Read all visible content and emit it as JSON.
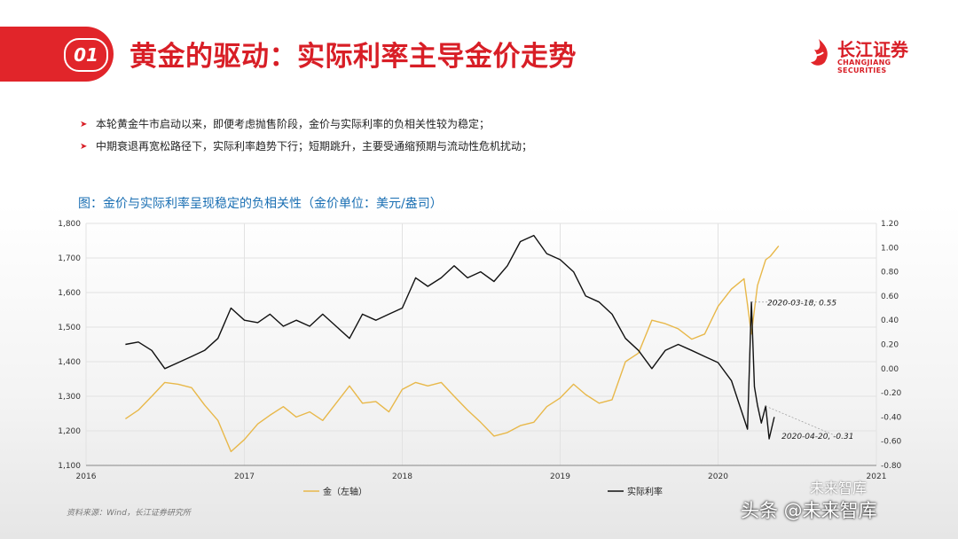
{
  "header": {
    "number": "01",
    "title": "黄金的驱动：实际利率主导金价走势"
  },
  "logo": {
    "cn": "长江证券",
    "en": "CHANGJIANG SECURITIES"
  },
  "bullets": [
    "本轮黄金牛市启动以来，即便考虑抛售阶段，金价与实际利率的负相关性较为稳定；",
    "中期衰退再宽松路径下，实际利率趋势下行；短期跳升，主要受通缩预期与流动性危机扰动；"
  ],
  "chart_title": "图：金价与实际利率呈现稳定的负相关性（金价单位：美元/盎司）",
  "source": "资料来源：Wind，长江证券研究所",
  "watermark": "头条 @未来智库",
  "watermark_top": "未来智库",
  "colors": {
    "gold": "#e8b84a",
    "real_rate": "#111111",
    "brand_red": "#e1252a"
  },
  "chart_data": {
    "type": "line",
    "x_ticks": [
      "2016",
      "2017",
      "2018",
      "2019",
      "2020",
      "2021"
    ],
    "xlim": [
      "2016-01-01",
      "2021-01-01"
    ],
    "y_left": {
      "ylim": [
        1100,
        1800
      ],
      "ticks": [
        "1,100",
        "1,200",
        "1,300",
        "1,400",
        "1,500",
        "1,600",
        "1,700",
        "1,800"
      ]
    },
    "y_right": {
      "ylim": [
        -0.8,
        1.2
      ],
      "ticks": [
        "-0.80",
        "-0.60",
        "-0.40",
        "-0.20",
        "0.00",
        "0.20",
        "0.40",
        "0.60",
        "0.80",
        "1.00",
        "1.20"
      ]
    },
    "legend_position": "bottom",
    "series": [
      {
        "name": "金（左轴）",
        "axis": "left",
        "points": [
          [
            "2016-04-01",
            1235
          ],
          [
            "2016-05-01",
            1260
          ],
          [
            "2016-06-01",
            1300
          ],
          [
            "2016-07-01",
            1340
          ],
          [
            "2016-08-01",
            1335
          ],
          [
            "2016-09-01",
            1325
          ],
          [
            "2016-10-01",
            1275
          ],
          [
            "2016-11-01",
            1230
          ],
          [
            "2016-12-01",
            1140
          ],
          [
            "2017-01-01",
            1175
          ],
          [
            "2017-02-01",
            1220
          ],
          [
            "2017-03-01",
            1245
          ],
          [
            "2017-04-01",
            1270
          ],
          [
            "2017-05-01",
            1240
          ],
          [
            "2017-06-01",
            1255
          ],
          [
            "2017-07-01",
            1230
          ],
          [
            "2017-08-01",
            1280
          ],
          [
            "2017-09-01",
            1330
          ],
          [
            "2017-10-01",
            1280
          ],
          [
            "2017-11-01",
            1285
          ],
          [
            "2017-12-01",
            1255
          ],
          [
            "2018-01-01",
            1320
          ],
          [
            "2018-02-01",
            1340
          ],
          [
            "2018-03-01",
            1330
          ],
          [
            "2018-04-01",
            1340
          ],
          [
            "2018-05-01",
            1300
          ],
          [
            "2018-06-01",
            1260
          ],
          [
            "2018-07-01",
            1225
          ],
          [
            "2018-08-01",
            1185
          ],
          [
            "2018-09-01",
            1195
          ],
          [
            "2018-10-01",
            1215
          ],
          [
            "2018-11-01",
            1225
          ],
          [
            "2018-12-01",
            1270
          ],
          [
            "2019-01-01",
            1295
          ],
          [
            "2019-02-01",
            1335
          ],
          [
            "2019-03-01",
            1305
          ],
          [
            "2019-04-01",
            1280
          ],
          [
            "2019-05-01",
            1290
          ],
          [
            "2019-06-01",
            1400
          ],
          [
            "2019-07-01",
            1425
          ],
          [
            "2019-08-01",
            1520
          ],
          [
            "2019-09-01",
            1510
          ],
          [
            "2019-10-01",
            1495
          ],
          [
            "2019-11-01",
            1465
          ],
          [
            "2019-12-01",
            1480
          ],
          [
            "2020-01-01",
            1560
          ],
          [
            "2020-02-01",
            1610
          ],
          [
            "2020-03-01",
            1640
          ],
          [
            "2020-03-18",
            1480
          ],
          [
            "2020-04-01",
            1620
          ],
          [
            "2020-04-20",
            1695
          ],
          [
            "2020-05-01",
            1705
          ],
          [
            "2020-05-20",
            1735
          ]
        ]
      },
      {
        "name": "实际利率",
        "axis": "right",
        "points": [
          [
            "2016-04-01",
            0.2
          ],
          [
            "2016-05-01",
            0.22
          ],
          [
            "2016-06-01",
            0.15
          ],
          [
            "2016-07-01",
            0.0
          ],
          [
            "2016-08-01",
            0.05
          ],
          [
            "2016-09-01",
            0.1
          ],
          [
            "2016-10-01",
            0.15
          ],
          [
            "2016-11-01",
            0.25
          ],
          [
            "2016-12-01",
            0.5
          ],
          [
            "2017-01-01",
            0.4
          ],
          [
            "2017-02-01",
            0.38
          ],
          [
            "2017-03-01",
            0.45
          ],
          [
            "2017-04-01",
            0.35
          ],
          [
            "2017-05-01",
            0.4
          ],
          [
            "2017-06-01",
            0.35
          ],
          [
            "2017-07-01",
            0.45
          ],
          [
            "2017-08-01",
            0.35
          ],
          [
            "2017-09-01",
            0.25
          ],
          [
            "2017-10-01",
            0.45
          ],
          [
            "2017-11-01",
            0.4
          ],
          [
            "2017-12-01",
            0.45
          ],
          [
            "2018-01-01",
            0.5
          ],
          [
            "2018-02-01",
            0.75
          ],
          [
            "2018-03-01",
            0.68
          ],
          [
            "2018-04-01",
            0.75
          ],
          [
            "2018-05-01",
            0.85
          ],
          [
            "2018-06-01",
            0.75
          ],
          [
            "2018-07-01",
            0.8
          ],
          [
            "2018-08-01",
            0.72
          ],
          [
            "2018-09-01",
            0.85
          ],
          [
            "2018-10-01",
            1.05
          ],
          [
            "2018-11-01",
            1.1
          ],
          [
            "2018-12-01",
            0.95
          ],
          [
            "2019-01-01",
            0.9
          ],
          [
            "2019-02-01",
            0.8
          ],
          [
            "2019-03-01",
            0.6
          ],
          [
            "2019-04-01",
            0.55
          ],
          [
            "2019-05-01",
            0.45
          ],
          [
            "2019-06-01",
            0.25
          ],
          [
            "2019-07-01",
            0.15
          ],
          [
            "2019-08-01",
            0.0
          ],
          [
            "2019-09-01",
            0.15
          ],
          [
            "2019-10-01",
            0.2
          ],
          [
            "2019-11-01",
            0.15
          ],
          [
            "2019-12-01",
            0.1
          ],
          [
            "2020-01-01",
            0.05
          ],
          [
            "2020-02-01",
            -0.1
          ],
          [
            "2020-03-09",
            -0.5
          ],
          [
            "2020-03-18",
            0.55
          ],
          [
            "2020-03-25",
            -0.15
          ],
          [
            "2020-04-01",
            -0.3
          ],
          [
            "2020-04-10",
            -0.45
          ],
          [
            "2020-04-20",
            -0.31
          ],
          [
            "2020-04-28",
            -0.58
          ],
          [
            "2020-05-10",
            -0.4
          ]
        ]
      }
    ],
    "annotations": [
      {
        "text": "2020-03-18, 0.55",
        "x": "2020-03-18",
        "y": 0.55,
        "axis": "right"
      },
      {
        "text": "2020-04-20, -0.31",
        "x": "2020-04-20",
        "y": -0.31,
        "axis": "right"
      }
    ]
  }
}
